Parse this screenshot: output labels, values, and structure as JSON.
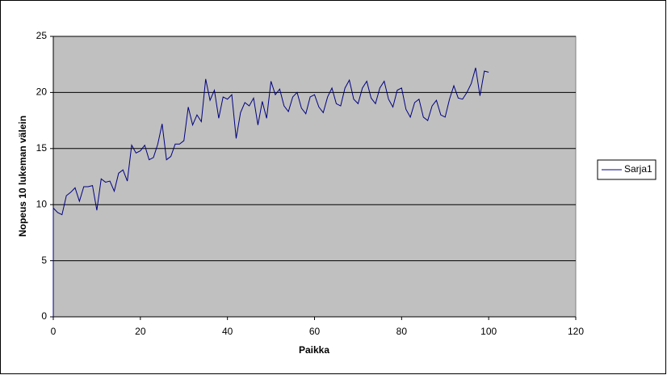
{
  "chart_data": {
    "type": "line",
    "xlabel": "Paikka",
    "ylabel": "Nopeus 10 lukeman välein",
    "x": [
      0,
      0,
      1,
      2,
      3,
      4,
      5,
      6,
      7,
      8,
      9,
      10,
      11,
      12,
      13,
      14,
      15,
      16,
      17,
      18,
      19,
      20,
      21,
      22,
      23,
      24,
      25,
      26,
      27,
      28,
      29,
      30,
      31,
      32,
      33,
      34,
      35,
      36,
      37,
      38,
      39,
      40,
      41,
      42,
      43,
      44,
      45,
      46,
      47,
      48,
      49,
      50,
      51,
      52,
      53,
      54,
      55,
      56,
      57,
      58,
      59,
      60,
      61,
      62,
      63,
      64,
      65,
      66,
      67,
      68,
      69,
      70,
      71,
      72,
      73,
      74,
      75,
      76,
      77,
      78,
      79,
      80,
      81,
      82,
      83,
      84,
      85,
      86,
      87,
      88,
      89,
      90,
      91,
      92,
      93,
      94,
      95,
      96,
      97,
      98,
      99,
      100
    ],
    "series": [
      {
        "name": "Sarja1",
        "color": "#000080",
        "values": [
          0,
          9.7,
          9.3,
          9.1,
          10.8,
          11.1,
          11.5,
          10.3,
          11.6,
          11.6,
          11.7,
          9.5,
          12.3,
          12.0,
          12.1,
          11.2,
          12.8,
          13.1,
          12.1,
          15.3,
          14.6,
          14.8,
          15.3,
          14.0,
          14.2,
          15.4,
          17.2,
          14.0,
          14.3,
          15.4,
          15.4,
          15.7,
          18.7,
          17.1,
          18.0,
          17.4,
          21.2,
          19.3,
          20.2,
          17.7,
          19.6,
          19.4,
          19.8,
          15.9,
          18.2,
          19.1,
          18.8,
          19.5,
          17.1,
          19.2,
          17.7,
          21.0,
          19.8,
          20.3,
          18.8,
          18.3,
          19.6,
          20.0,
          18.6,
          18.1,
          19.6,
          19.8,
          18.7,
          18.2,
          19.6,
          20.4,
          19.0,
          18.8,
          20.4,
          21.1,
          19.4,
          19.0,
          20.4,
          21.0,
          19.5,
          19.0,
          20.4,
          21.0,
          19.4,
          18.7,
          20.2,
          20.4,
          18.5,
          17.8,
          19.1,
          19.4,
          17.8,
          17.5,
          18.8,
          19.3,
          18.0,
          17.8,
          19.4,
          20.6,
          19.5,
          19.4,
          20.0,
          20.8,
          22.2,
          19.7,
          21.9,
          21.8
        ]
      }
    ],
    "xlim": [
      0,
      120
    ],
    "xticks": [
      0,
      20,
      40,
      60,
      80,
      100,
      120
    ],
    "ylim": [
      0,
      25
    ],
    "yticks": [
      0,
      5,
      10,
      15,
      20,
      25
    ],
    "grid": true,
    "legend": "right"
  }
}
